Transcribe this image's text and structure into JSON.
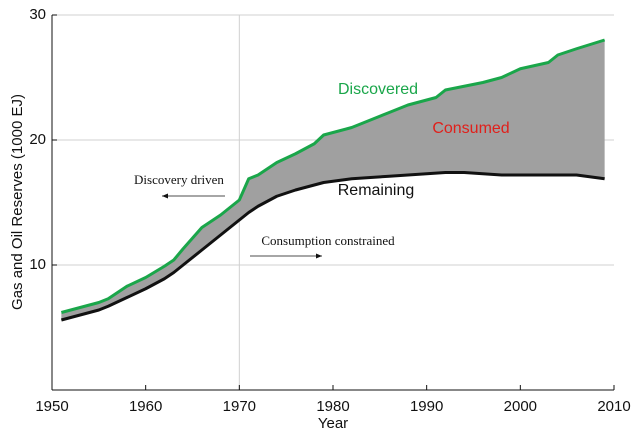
{
  "chart_data": {
    "type": "line",
    "xlabel": "Year",
    "ylabel": "Gas and Oil Reserves (1000 EJ)",
    "x": [
      1951,
      1953,
      1955,
      1956,
      1958,
      1960,
      1962,
      1963,
      1964,
      1966,
      1968,
      1970,
      1971,
      1972,
      1974,
      1976,
      1978,
      1979,
      1982,
      1984,
      1986,
      1988,
      1990,
      1991,
      1992,
      1994,
      1996,
      1998,
      2000,
      2003,
      2004,
      2006,
      2009
    ],
    "series": [
      {
        "name": "Discovered",
        "color": "#1aa64a",
        "values": [
          6.2,
          6.6,
          7.0,
          7.3,
          8.3,
          9.0,
          9.9,
          10.4,
          11.3,
          13.0,
          14.0,
          15.2,
          16.9,
          17.2,
          18.2,
          18.9,
          19.7,
          20.4,
          21.0,
          21.6,
          22.2,
          22.8,
          23.2,
          23.4,
          24.0,
          24.3,
          24.6,
          25.0,
          25.7,
          26.2,
          26.8,
          27.3,
          28.0
        ]
      },
      {
        "name": "Remaining",
        "color": "#111111",
        "values": [
          5.6,
          6.0,
          6.4,
          6.7,
          7.4,
          8.1,
          8.9,
          9.4,
          10.0,
          11.2,
          12.4,
          13.6,
          14.2,
          14.7,
          15.5,
          16.0,
          16.4,
          16.6,
          16.9,
          17.0,
          17.1,
          17.2,
          17.3,
          17.35,
          17.4,
          17.4,
          17.3,
          17.2,
          17.2,
          17.2,
          17.2,
          17.2,
          16.9
        ]
      }
    ],
    "fill_between": {
      "name": "Consumed",
      "color": "#a0a0a0",
      "label_color": "#e0201b"
    },
    "annotations": [
      "Discovery driven",
      "Consumption constrained"
    ],
    "xlim": [
      1950,
      2010
    ],
    "xticks": [
      1950,
      1960,
      1970,
      1980,
      1990,
      2000,
      2010
    ],
    "ylim": [
      0,
      30
    ],
    "yticks": [
      10,
      20,
      30
    ],
    "grid": true,
    "reference_line_x": 1970
  }
}
